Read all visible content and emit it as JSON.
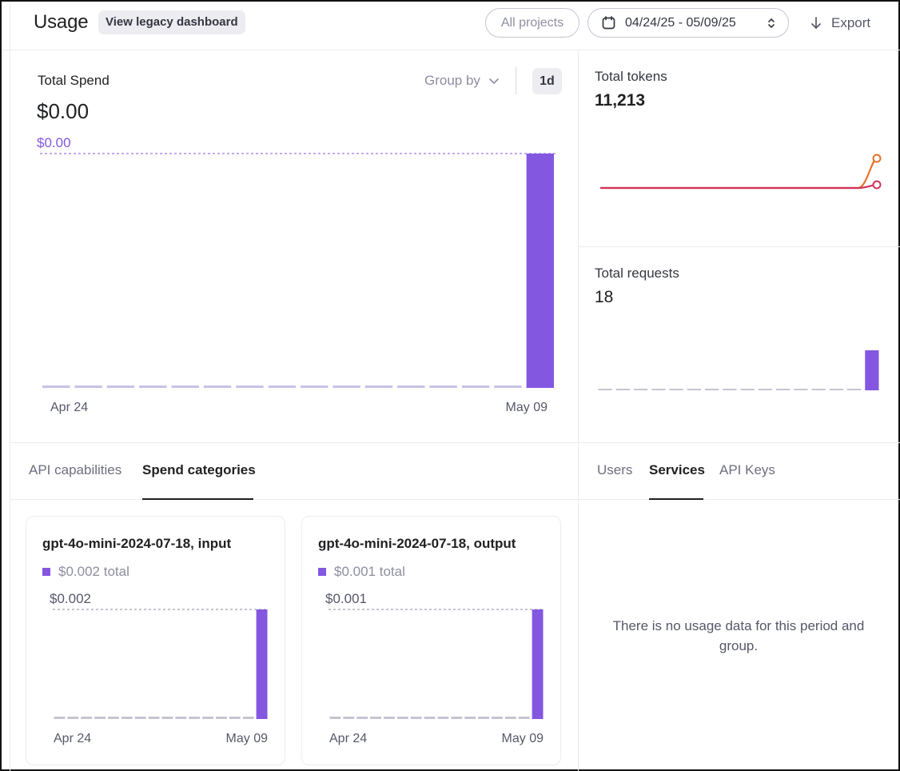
{
  "header": {
    "title": "Usage",
    "legacy_button": "View legacy dashboard",
    "projects_button": "All projects",
    "date_range": "04/24/25 - 05/09/25",
    "export_label": "Export"
  },
  "spend": {
    "label": "Total Spend",
    "value": "$0.00",
    "group_by_label": "Group by",
    "granularity": "1d"
  },
  "tokens": {
    "label": "Total tokens",
    "value": "11,213"
  },
  "requests": {
    "label": "Total requests",
    "value": "18"
  },
  "left_tabs": [
    "API capabilities",
    "Spend categories"
  ],
  "left_active_tab": "Spend categories",
  "right_tabs": [
    "Users",
    "Services",
    "API Keys"
  ],
  "right_active_tab": "Services",
  "cards": [
    {
      "title": "gpt-4o-mini-2024-07-18, input",
      "legend": "$0.002 total"
    },
    {
      "title": "gpt-4o-mini-2024-07-18, output",
      "legend": "$0.001 total"
    }
  ],
  "empty_message": "There is no usage data for this period and group.",
  "colors": {
    "accent_purple": "#8357e0",
    "baseline_lavender": "#c8c1e6",
    "line_orange": "#e8722a",
    "line_red": "#d2335c",
    "baseline_gray": "#c5c5d2"
  },
  "chart_data": [
    {
      "type": "bar",
      "x": [
        "Apr 24",
        "Apr 25",
        "Apr 26",
        "Apr 27",
        "Apr 28",
        "Apr 29",
        "Apr 30",
        "May 01",
        "May 02",
        "May 03",
        "May 04",
        "May 05",
        "May 06",
        "May 07",
        "May 08",
        "May 09"
      ],
      "values": [
        0,
        0,
        0,
        0,
        0,
        0,
        0,
        0,
        0,
        0,
        0,
        0,
        0,
        0,
        0,
        0.0032
      ],
      "xticks": [
        "Apr 24",
        "May 09"
      ],
      "ymax_label": "$0.00",
      "ylabel": "",
      "xlabel": ""
    },
    {
      "type": "line",
      "x": [
        "Apr 24",
        "Apr 25",
        "Apr 26",
        "Apr 27",
        "Apr 28",
        "Apr 29",
        "Apr 30",
        "May 01",
        "May 02",
        "May 03",
        "May 04",
        "May 05",
        "May 06",
        "May 07",
        "May 08",
        "May 09"
      ],
      "series": [
        {
          "values": [
            0,
            0,
            0,
            0,
            0,
            0,
            0,
            0,
            0,
            0,
            0,
            0,
            0,
            0,
            0,
            11213
          ]
        },
        {
          "values": [
            0,
            0,
            0,
            0,
            0,
            0,
            0,
            0,
            0,
            0,
            0,
            0,
            0,
            0,
            0,
            1200
          ]
        }
      ]
    },
    {
      "type": "bar",
      "x": [
        "Apr 24",
        "Apr 25",
        "Apr 26",
        "Apr 27",
        "Apr 28",
        "Apr 29",
        "Apr 30",
        "May 01",
        "May 02",
        "May 03",
        "May 04",
        "May 05",
        "May 06",
        "May 07",
        "May 08",
        "May 09"
      ],
      "values": [
        0,
        0,
        0,
        0,
        0,
        0,
        0,
        0,
        0,
        0,
        0,
        0,
        0,
        0,
        0,
        18
      ]
    },
    {
      "type": "bar",
      "x": [
        "Apr 24",
        "Apr 25",
        "Apr 26",
        "Apr 27",
        "Apr 28",
        "Apr 29",
        "Apr 30",
        "May 01",
        "May 02",
        "May 03",
        "May 04",
        "May 05",
        "May 06",
        "May 07",
        "May 08",
        "May 09"
      ],
      "values": [
        0,
        0,
        0,
        0,
        0,
        0,
        0,
        0,
        0,
        0,
        0,
        0,
        0,
        0,
        0,
        0.002
      ],
      "xticks": [
        "Apr 24",
        "May 09"
      ],
      "ymax_label": "$0.002"
    },
    {
      "type": "bar",
      "x": [
        "Apr 24",
        "Apr 25",
        "Apr 26",
        "Apr 27",
        "Apr 28",
        "Apr 29",
        "Apr 30",
        "May 01",
        "May 02",
        "May 03",
        "May 04",
        "May 05",
        "May 06",
        "May 07",
        "May 08",
        "May 09"
      ],
      "values": [
        0,
        0,
        0,
        0,
        0,
        0,
        0,
        0,
        0,
        0,
        0,
        0,
        0,
        0,
        0,
        0.001
      ],
      "xticks": [
        "Apr 24",
        "May 09"
      ],
      "ymax_label": "$0.001"
    }
  ]
}
